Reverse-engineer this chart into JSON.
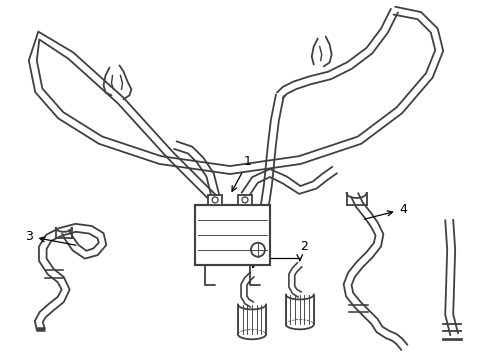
{
  "background_color": "#ffffff",
  "line_color": "#404040",
  "line_width": 1.3,
  "label_color": "#000000",
  "label_fontsize": 9,
  "fig_width": 4.89,
  "fig_height": 3.6,
  "dpi": 100
}
